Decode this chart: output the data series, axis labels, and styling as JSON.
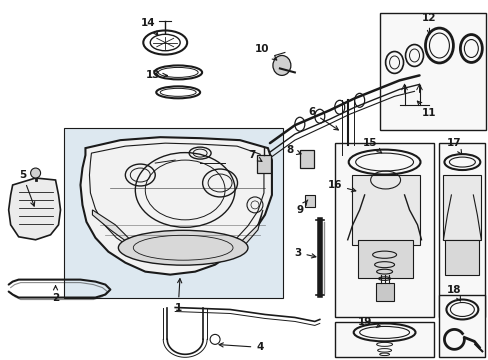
{
  "bg_color": "#ffffff",
  "line_color": "#1a1a1a",
  "fig_width": 4.89,
  "fig_height": 3.6,
  "dpi": 100,
  "label_fontsize": 7.5,
  "tank_bg": "#e8e8e8",
  "part_bg": "#f5f5f5",
  "box_bg": "#f0f0f0"
}
